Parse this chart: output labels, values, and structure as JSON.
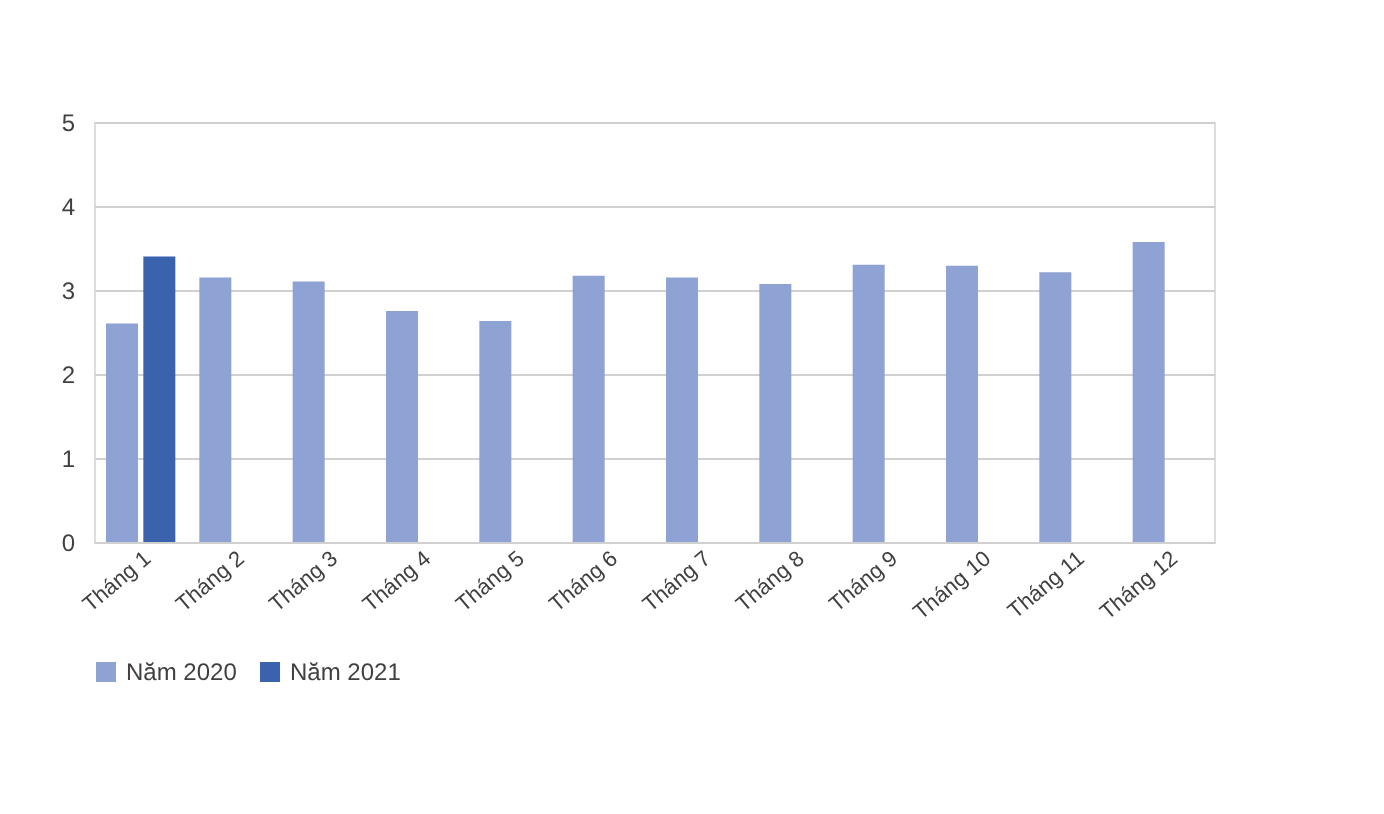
{
  "chart_data": {
    "type": "bar",
    "categories": [
      "Tháng 1",
      "Tháng 2",
      "Tháng 3",
      "Tháng 4",
      "Tháng 5",
      "Tháng 6",
      "Tháng 7",
      "Tháng 8",
      "Tháng 9",
      "Tháng 10",
      "Tháng 11",
      "Tháng 12"
    ],
    "series": [
      {
        "name": "Năm 2020",
        "color": "#8fa2d4",
        "values": [
          2.6,
          3.15,
          3.1,
          2.75,
          2.63,
          3.17,
          3.15,
          3.07,
          3.3,
          3.29,
          3.21,
          3.57
        ]
      },
      {
        "name": "Năm 2021",
        "color": "#3a62ad",
        "values": [
          3.4,
          null,
          null,
          null,
          null,
          null,
          null,
          null,
          null,
          null,
          null,
          null
        ]
      }
    ],
    "ylim": [
      0,
      5
    ],
    "yticks": [
      0,
      1,
      2,
      3,
      4,
      5
    ],
    "grid": "y",
    "legend": "bottom"
  }
}
